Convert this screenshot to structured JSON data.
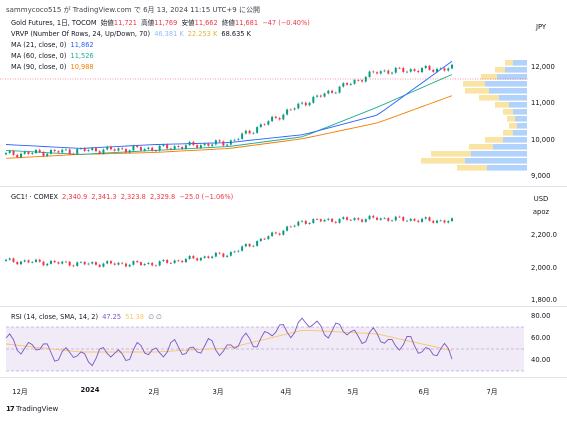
{
  "header": {
    "author_line": "sammycoco515 が TradingView.com で 6月 13, 2024 11:15 UTC+9 に公開"
  },
  "currency_badge": "JPY",
  "pane1": {
    "symbol_line": "Gold Futures, 1日, TOCOM",
    "ohlc": {
      "open_label": "始値",
      "open": "11,721",
      "high_label": "高値",
      "high": "11,769",
      "low_label": "安値",
      "low": "11,662",
      "close_label": "終値",
      "close": "11,681",
      "change": "−47 (−0.40%)"
    },
    "vrvp": {
      "label": "VRVP (Number Of Rows, 24, Up/Down, 70)",
      "up": "46.381 K",
      "down": "22.253 K",
      "total": "68.635 K"
    },
    "ma21": {
      "label": "MA (21, close, 0)",
      "value": "11,862",
      "color": "#2962ff"
    },
    "ma60": {
      "label": "MA (60, close, 0)",
      "value": "11,526",
      "color": "#22ab94"
    },
    "ma90": {
      "label": "MA (90, close, 0)",
      "value": "10,988",
      "color": "#f57c00"
    },
    "price_ticks": [
      "12,000",
      "11,000",
      "10,000",
      "9,000"
    ]
  },
  "pane2": {
    "symbol_line": "GC1! · COMEX",
    "ohlc": {
      "open": "2,340.9",
      "high": "2,341.3",
      "low": "2,323.8",
      "close": "2,329.8",
      "change": "−25.0 (−1.06%)"
    },
    "usd_badge": "USD",
    "apoz_badge": "apoz",
    "price_ticks": [
      "2,200.0",
      "2,000.0",
      "1,800.0"
    ]
  },
  "pane3": {
    "label": "RSI (14, close, SMA, 14, 2)",
    "rsi_value": "47.25",
    "sma_value": "51.38",
    "icons": "∅ ∅",
    "ticks": [
      "80.00",
      "60.00",
      "40.00"
    ]
  },
  "xaxis": [
    "12月",
    "2024",
    "2月",
    "3月",
    "4月",
    "5月",
    "6月",
    "7月"
  ],
  "footer": {
    "brand": "TradingView"
  },
  "chart_data": [
    {
      "type": "line",
      "title": "Gold Futures, 1日, TOCOM",
      "x": [
        "2023-12",
        "2024-01",
        "2024-02",
        "2024-03",
        "2024-04",
        "2024-05",
        "2024-06"
      ],
      "series": [
        {
          "name": "MA (21, close, 0)",
          "values": [
            9750,
            9650,
            9750,
            9800,
            10000,
            10500,
            11862
          ]
        },
        {
          "name": "MA (60, close, 0)",
          "values": [
            9600,
            9500,
            9600,
            9700,
            9950,
            10700,
            11526
          ]
        },
        {
          "name": "MA (90, close, 0)",
          "values": [
            9400,
            9500,
            9550,
            9650,
            9900,
            10300,
            10988
          ]
        }
      ],
      "close": [
        9500,
        9600,
        9650,
        9800,
        10800,
        11600,
        11681
      ],
      "ylim": [
        8800,
        12400
      ]
    },
    {
      "type": "line",
      "title": "GC1! · COMEX",
      "x": [
        "2023-12",
        "2024-01",
        "2024-02",
        "2024-03",
        "2024-04",
        "2024-05",
        "2024-06"
      ],
      "close": [
        2050,
        2030,
        2030,
        2100,
        2330,
        2350,
        2329.8
      ],
      "ylim": [
        1760,
        2480
      ]
    },
    {
      "type": "line",
      "title": "RSI (14, close, SMA, 14, 2)",
      "x": [
        "2023-12",
        "2024-01",
        "2024-02",
        "2024-03",
        "2024-04",
        "2024-05",
        "2024-06"
      ],
      "series": [
        {
          "name": "RSI",
          "values": [
            60,
            45,
            52,
            55,
            78,
            64,
            47.25
          ]
        },
        {
          "name": "SMA",
          "values": [
            58,
            50,
            50,
            54,
            72,
            68,
            51.38
          ]
        }
      ],
      "ylim": [
        28,
        90
      ]
    }
  ]
}
